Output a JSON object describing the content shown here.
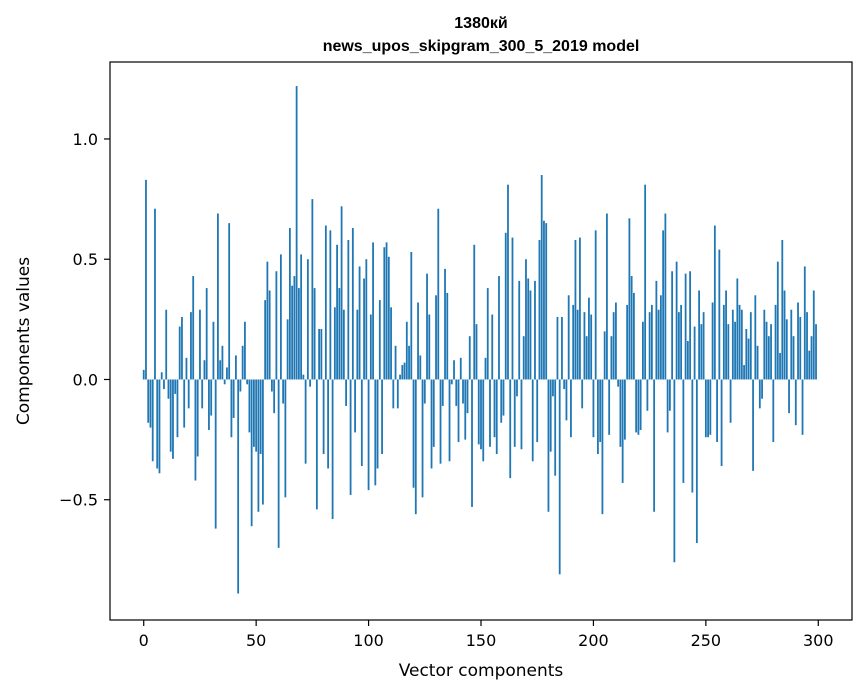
{
  "chart_data": {
    "type": "bar",
    "title_line1": "1380кй",
    "title_line2": "news_upos_skipgram_300_5_2019 model",
    "xlabel": "Vector components",
    "ylabel": "Components values",
    "xlim": [
      -15,
      315
    ],
    "ylim": [
      -1.0,
      1.32
    ],
    "xticks": [
      0,
      50,
      100,
      150,
      200,
      250,
      300
    ],
    "xtick_labels": [
      "0",
      "50",
      "100",
      "150",
      "200",
      "250",
      "300"
    ],
    "yticks": [
      -0.5,
      0.0,
      0.5,
      1.0
    ],
    "ytick_labels": [
      "−0.5",
      "0.0",
      "0.5",
      "1.0"
    ],
    "bar_color": "#1f77b4",
    "grid": false,
    "values": [
      0.04,
      0.83,
      -0.18,
      -0.2,
      -0.34,
      0.71,
      -0.37,
      -0.39,
      0.03,
      -0.04,
      0.29,
      -0.08,
      -0.3,
      -0.33,
      -0.06,
      -0.24,
      0.22,
      0.26,
      -0.2,
      0.09,
      -0.12,
      0.28,
      0.43,
      -0.42,
      -0.32,
      0.29,
      -0.12,
      0.08,
      0.38,
      -0.21,
      -0.15,
      0.24,
      -0.62,
      0.69,
      0.08,
      0.14,
      -0.02,
      0.05,
      0.65,
      -0.24,
      -0.16,
      0.1,
      -0.89,
      -0.05,
      0.14,
      0.24,
      -0.02,
      -0.22,
      -0.61,
      -0.28,
      -0.3,
      -0.55,
      -0.31,
      -0.52,
      0.33,
      0.49,
      0.37,
      -0.05,
      -0.14,
      0.45,
      -0.7,
      0.52,
      -0.1,
      -0.49,
      0.25,
      0.63,
      0.39,
      0.43,
      1.22,
      0.38,
      0.52,
      0.02,
      -0.35,
      0.5,
      -0.03,
      0.75,
      0.38,
      -0.54,
      0.21,
      0.21,
      -0.31,
      0.64,
      -0.37,
      0.62,
      -0.58,
      0.3,
      0.56,
      0.38,
      0.72,
      0.29,
      -0.11,
      0.58,
      -0.48,
      0.63,
      -0.22,
      0.29,
      0.47,
      -0.36,
      0.42,
      0.5,
      -0.46,
      0.27,
      0.57,
      -0.44,
      -0.37,
      0.33,
      -0.31,
      0.55,
      0.57,
      0.51,
      0.3,
      -0.12,
      0.14,
      -0.12,
      0.02,
      0.06,
      0.07,
      0.24,
      0.14,
      0.53,
      -0.45,
      -0.56,
      0.32,
      0.1,
      -0.49,
      -0.1,
      0.44,
      0.27,
      -0.37,
      -0.28,
      0.35,
      0.71,
      -0.35,
      -0.11,
      0.46,
      0.36,
      -0.34,
      -0.02,
      0.08,
      -0.11,
      -0.26,
      0.09,
      -0.1,
      -0.25,
      -0.14,
      0.18,
      -0.53,
      0.56,
      0.23,
      -0.27,
      -0.29,
      -0.34,
      0.09,
      0.38,
      -0.28,
      0.27,
      -0.24,
      -0.31,
      0.43,
      -0.18,
      -0.15,
      0.61,
      0.81,
      -0.41,
      0.59,
      -0.28,
      -0.07,
      0.41,
      -0.29,
      0.18,
      0.5,
      0.42,
      0.37,
      -0.34,
      0.41,
      -0.26,
      0.58,
      0.85,
      0.66,
      0.65,
      -0.55,
      -0.3,
      -0.07,
      -0.4,
      0.26,
      -0.81,
      0.26,
      -0.04,
      -0.17,
      0.35,
      -0.24,
      0.31,
      0.58,
      0.29,
      0.59,
      -0.12,
      0.28,
      0.18,
      0.34,
      0.27,
      -0.24,
      0.62,
      -0.31,
      -0.26,
      -0.56,
      0.2,
      0.69,
      -0.23,
      0.18,
      0.28,
      0.32,
      -0.03,
      -0.28,
      -0.43,
      -0.25,
      0.31,
      0.67,
      0.43,
      0.36,
      -0.22,
      -0.23,
      -0.21,
      0.24,
      0.81,
      -0.13,
      0.28,
      0.31,
      -0.55,
      0.41,
      0.29,
      0.35,
      0.62,
      0.69,
      -0.22,
      -0.13,
      0.45,
      -0.76,
      0.49,
      0.28,
      0.31,
      -0.43,
      0.44,
      0.16,
      0.45,
      -0.47,
      0.22,
      -0.68,
      0.37,
      0.23,
      0.28,
      -0.24,
      -0.24,
      -0.23,
      0.32,
      0.64,
      -0.26,
      0.54,
      -0.36,
      0.31,
      0.37,
      0.23,
      -0.18,
      0.29,
      0.24,
      0.42,
      0.31,
      0.29,
      0.06,
      0.21,
      0.17,
      0.28,
      -0.38,
      0.35,
      0.14,
      -0.12,
      -0.08,
      0.29,
      0.24,
      0.18,
      0.23,
      -0.26,
      0.31,
      0.49,
      0.11,
      0.58,
      0.37,
      0.25,
      -0.14,
      0.29,
      0.18,
      -0.19,
      0.32,
      0.26,
      -0.23,
      0.47,
      0.28,
      0.12,
      0.18,
      0.37,
      0.23
    ]
  }
}
